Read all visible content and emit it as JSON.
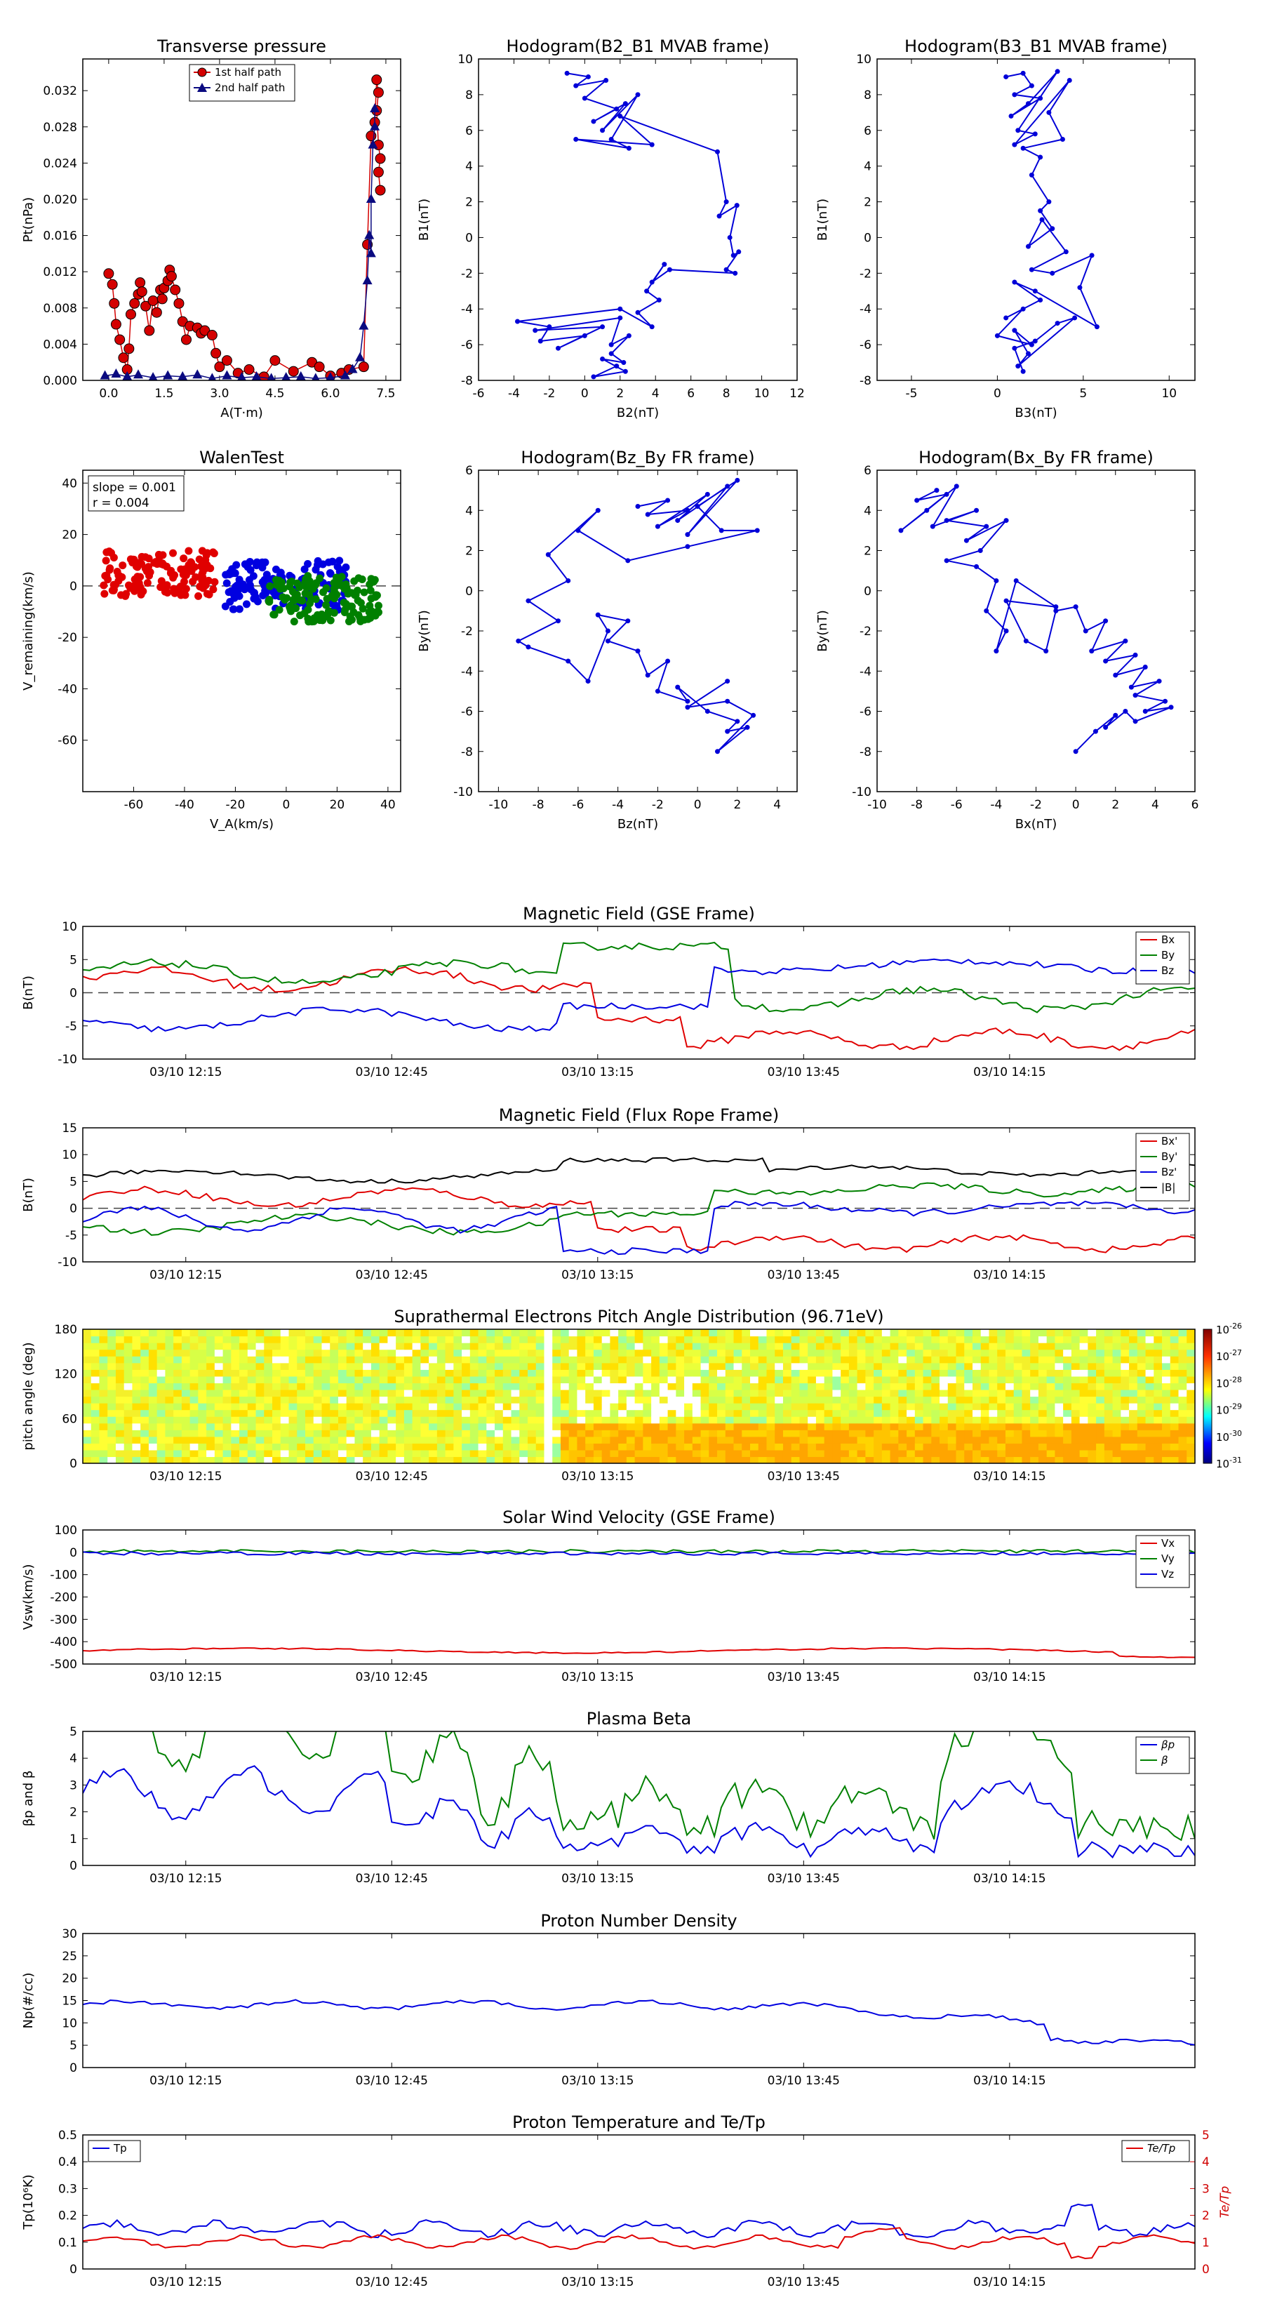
{
  "chart_data": [
    {
      "id": "tp",
      "type": "scatter",
      "title": "Transverse pressure",
      "xlabel": "A(T·m)",
      "ylabel": "Pt(nPa)",
      "xlim": [
        -0.7,
        7.9
      ],
      "ylim": [
        0,
        0.0355
      ],
      "xticks": [
        0.0,
        1.5,
        3.0,
        4.5,
        6.0,
        7.5
      ],
      "xtick_labels": [
        "0.0",
        "1.5",
        "3.0",
        "4.5",
        "6.0",
        "7.5"
      ],
      "yticks": [
        0.0,
        0.004,
        0.008,
        0.012,
        0.016,
        0.02,
        0.024,
        0.028,
        0.032
      ],
      "ytick_labels": [
        "0.000",
        "0.004",
        "0.008",
        "0.012",
        "0.016",
        "0.020",
        "0.024",
        "0.028",
        "0.032"
      ],
      "legend_position": "top-center",
      "series": [
        {
          "name": "1st half path",
          "color": "#d40000",
          "marker": "circle",
          "x": [
            0.0,
            0.1,
            0.15,
            0.2,
            0.3,
            0.4,
            0.5,
            0.55,
            0.6,
            0.7,
            0.8,
            0.85,
            0.9,
            1.0,
            1.1,
            1.2,
            1.3,
            1.4,
            1.45,
            1.5,
            1.6,
            1.65,
            1.7,
            1.8,
            1.9,
            2.0,
            2.1,
            2.2,
            2.4,
            2.5,
            2.6,
            2.8,
            2.9,
            3.0,
            3.2,
            3.5,
            3.8,
            4.2,
            4.5,
            5.0,
            5.5,
            5.7,
            6.0,
            6.3,
            6.5,
            6.9,
            7.0,
            7.1,
            7.2,
            7.25,
            7.3,
            7.25,
            7.3,
            7.35,
            7.3,
            7.35
          ],
          "y": [
            0.0118,
            0.0106,
            0.0085,
            0.0062,
            0.0045,
            0.0025,
            0.0012,
            0.0035,
            0.0073,
            0.0085,
            0.0095,
            0.0108,
            0.0098,
            0.0082,
            0.0055,
            0.0088,
            0.0075,
            0.01,
            0.009,
            0.0102,
            0.011,
            0.0122,
            0.0115,
            0.01,
            0.0085,
            0.0065,
            0.0045,
            0.006,
            0.0058,
            0.0052,
            0.0055,
            0.005,
            0.003,
            0.0015,
            0.0022,
            0.0008,
            0.0012,
            0.0004,
            0.0022,
            0.001,
            0.002,
            0.0015,
            0.0005,
            0.0008,
            0.0012,
            0.0015,
            0.015,
            0.027,
            0.0285,
            0.0332,
            0.0318,
            0.0298,
            0.026,
            0.0245,
            0.023,
            0.021
          ]
        },
        {
          "name": "2nd half path",
          "color": "#0a0a80",
          "marker": "triangle",
          "x": [
            -0.1,
            0.2,
            0.5,
            0.8,
            1.2,
            1.6,
            2.0,
            2.4,
            2.8,
            3.2,
            3.6,
            4.0,
            4.4,
            4.8,
            5.2,
            5.6,
            6.0,
            6.4,
            6.6,
            6.8,
            6.9,
            7.0,
            7.05,
            7.1,
            7.1,
            7.15,
            7.2,
            7.2
          ],
          "y": [
            0.0005,
            0.0007,
            0.0004,
            0.0006,
            0.0003,
            0.0005,
            0.0004,
            0.0006,
            0.0002,
            0.0005,
            0.0003,
            0.0004,
            0.0002,
            0.0003,
            0.0004,
            0.0002,
            0.0003,
            0.0005,
            0.0012,
            0.0025,
            0.006,
            0.011,
            0.016,
            0.014,
            0.02,
            0.026,
            0.028,
            0.03
          ]
        }
      ]
    },
    {
      "id": "h1",
      "type": "line",
      "title": "Hodogram(B2_B1 MVAB frame)",
      "xlabel": "B2(nT)",
      "ylabel": "B1(nT)",
      "xlim": [
        -6,
        12
      ],
      "ylim": [
        -8,
        10
      ],
      "xticks": [
        -6,
        -4,
        -2,
        0,
        2,
        4,
        6,
        8,
        10,
        12
      ],
      "yticks": [
        -8,
        -6,
        -4,
        -2,
        0,
        2,
        4,
        6,
        8,
        10
      ],
      "series": [
        {
          "color": "#0000d8",
          "x": [
            -1.0,
            0.2,
            -0.5,
            1.2,
            0.0,
            1.8,
            0.5,
            2.3,
            1.0,
            3.0,
            1.5,
            2.5,
            -0.5,
            3.8,
            2.0,
            7.5,
            8.0,
            7.6,
            8.6,
            8.2,
            8.4,
            8.7,
            8.0,
            8.5,
            4.8,
            3.8,
            4.5,
            3.5,
            4.2,
            3.0,
            3.8,
            2.0,
            -3.8,
            -2.0,
            -2.5,
            0.0,
            -1.5,
            1.0,
            -2.8,
            2.0,
            1.5,
            2.5,
            1.5,
            2.2,
            1.0,
            2.3,
            0.5,
            1.8
          ],
          "y": [
            9.2,
            9.0,
            8.5,
            8.8,
            7.8,
            7.2,
            6.5,
            7.5,
            6.0,
            8.0,
            5.5,
            5.0,
            5.5,
            5.2,
            6.8,
            4.8,
            2.0,
            1.2,
            1.8,
            0.0,
            -1.0,
            -0.8,
            -1.8,
            -2.0,
            -1.8,
            -2.5,
            -1.5,
            -3.0,
            -3.5,
            -4.2,
            -5.0,
            -4.0,
            -4.7,
            -5.0,
            -5.8,
            -5.5,
            -6.2,
            -5.0,
            -5.2,
            -4.5,
            -6.0,
            -5.5,
            -6.5,
            -7.0,
            -6.8,
            -7.5,
            -7.8,
            -7.2
          ]
        }
      ]
    },
    {
      "id": "h2",
      "type": "line",
      "title": "Hodogram(B3_B1 MVAB frame)",
      "xlabel": "B3(nT)",
      "ylabel": "B1(nT)",
      "xlim": [
        -7,
        11.5
      ],
      "ylim": [
        -8,
        10
      ],
      "xticks": [
        -5,
        0,
        5,
        10
      ],
      "yticks": [
        -8,
        -6,
        -4,
        -2,
        0,
        2,
        4,
        6,
        8,
        10
      ],
      "series": [
        {
          "color": "#0000d8",
          "x": [
            0.5,
            1.5,
            2.0,
            1.0,
            2.5,
            0.8,
            1.8,
            3.5,
            1.2,
            2.2,
            1.0,
            4.2,
            3.0,
            3.8,
            1.5,
            2.5,
            2.0,
            3.0,
            2.5,
            3.2,
            1.8,
            2.6,
            4.0,
            2.0,
            3.2,
            5.5,
            4.8,
            5.8,
            2.2,
            1.0,
            2.5,
            0.5,
            1.5,
            0.0,
            2.0,
            1.0,
            1.8,
            1.2,
            4.5,
            3.5,
            2.2,
            1.0,
            1.5
          ],
          "y": [
            9.0,
            9.2,
            8.5,
            8.0,
            7.8,
            6.8,
            7.5,
            9.3,
            6.0,
            5.8,
            5.2,
            8.8,
            7.0,
            5.5,
            5.0,
            4.5,
            3.5,
            2.0,
            1.5,
            0.5,
            -0.5,
            1.0,
            -0.8,
            -1.8,
            -2.0,
            -1.0,
            -2.8,
            -5.0,
            -3.0,
            -2.5,
            -3.5,
            -4.5,
            -4.0,
            -5.5,
            -6.0,
            -5.2,
            -6.5,
            -7.2,
            -4.5,
            -4.8,
            -5.8,
            -6.2,
            -7.5
          ]
        }
      ]
    },
    {
      "id": "walen",
      "type": "scatter",
      "title": "WalenTest",
      "xlabel": "V_A(km/s)",
      "ylabel": "V_remaining(km/s)",
      "xlim": [
        -80,
        45
      ],
      "ylim": [
        -80,
        45
      ],
      "xticks": [
        -60,
        -40,
        -20,
        0,
        20,
        40
      ],
      "yticks": [
        -60,
        -40,
        -20,
        0,
        20,
        40
      ],
      "annotations": [
        "slope = 0.001",
        "r = 0.004"
      ],
      "zero_line": true
    },
    {
      "id": "h3",
      "type": "line",
      "title": "Hodogram(Bz_By FR frame)",
      "xlabel": "Bz(nT)",
      "ylabel": "By(nT)",
      "xlim": [
        -11,
        5
      ],
      "ylim": [
        -10,
        6
      ],
      "xticks": [
        -10,
        -8,
        -6,
        -4,
        -2,
        0,
        2,
        4
      ],
      "yticks": [
        -10,
        -8,
        -6,
        -4,
        -2,
        0,
        2,
        4,
        6
      ],
      "series": [
        {
          "color": "#0000d8",
          "x": [
            -3.0,
            -1.5,
            -2.5,
            -0.5,
            -2.0,
            0.5,
            -1.0,
            1.5,
            -0.5,
            2.0,
            0.0,
            1.2,
            3.0,
            -0.5,
            -3.5,
            -6.0,
            -5.0,
            -7.5,
            -6.5,
            -8.5,
            -7.0,
            -9.0,
            -8.5,
            -6.5,
            -5.5,
            -4.5,
            -5.0,
            -3.5,
            -4.5,
            -3.0,
            -2.5,
            -1.5,
            -2.0,
            -0.5,
            -1.0,
            0.5,
            2.0,
            1.5,
            2.5,
            1.0,
            2.8,
            1.5,
            -0.5,
            1.5
          ],
          "y": [
            4.2,
            4.5,
            3.8,
            4.0,
            3.2,
            4.8,
            3.5,
            5.2,
            2.8,
            5.5,
            4.2,
            3.0,
            3.0,
            2.2,
            1.5,
            3.0,
            4.0,
            1.8,
            0.5,
            -0.5,
            -1.5,
            -2.5,
            -2.8,
            -3.5,
            -4.5,
            -2.0,
            -1.2,
            -1.5,
            -2.5,
            -3.0,
            -4.2,
            -3.5,
            -5.0,
            -5.5,
            -4.8,
            -6.0,
            -6.5,
            -7.0,
            -6.8,
            -8.0,
            -6.2,
            -5.5,
            -5.8,
            -4.5
          ]
        }
      ]
    },
    {
      "id": "h4",
      "type": "line",
      "title": "Hodogram(Bx_By FR frame)",
      "xlabel": "Bx(nT)",
      "ylabel": "By(nT)",
      "xlim": [
        -10,
        6
      ],
      "ylim": [
        -10,
        6
      ],
      "xticks": [
        -10,
        -8,
        -6,
        -4,
        -2,
        0,
        2,
        4,
        6
      ],
      "yticks": [
        -10,
        -8,
        -6,
        -4,
        -2,
        0,
        2,
        4,
        6
      ],
      "series": [
        {
          "color": "#0000d8",
          "x": [
            -7.0,
            -8.0,
            -6.5,
            -8.8,
            -7.5,
            -6.0,
            -7.2,
            -5.0,
            -6.5,
            -4.5,
            -5.5,
            -3.5,
            -4.8,
            -6.5,
            -5.0,
            -4.0,
            -4.5,
            -3.5,
            -4.0,
            -3.0,
            -1.0,
            -3.5,
            -2.5,
            -1.5,
            -1.0,
            0.0,
            0.5,
            1.5,
            0.8,
            2.5,
            1.5,
            3.0,
            2.0,
            3.5,
            2.8,
            4.2,
            3.0,
            4.5,
            3.5,
            4.8,
            3.0,
            2.5,
            1.5,
            2.0,
            1.0,
            0.0
          ],
          "y": [
            5.0,
            4.5,
            4.8,
            3.0,
            4.0,
            5.2,
            3.2,
            4.0,
            3.5,
            3.2,
            2.5,
            3.5,
            2.0,
            1.5,
            1.2,
            0.5,
            -1.0,
            -2.0,
            -3.0,
            0.5,
            -0.8,
            -0.5,
            -2.5,
            -3.0,
            -1.0,
            -0.8,
            -2.0,
            -1.5,
            -3.0,
            -2.5,
            -3.5,
            -3.2,
            -4.2,
            -3.8,
            -4.8,
            -4.5,
            -5.2,
            -5.5,
            -6.0,
            -5.8,
            -6.5,
            -6.0,
            -6.8,
            -6.2,
            -7.0,
            -8.0
          ]
        }
      ]
    },
    {
      "id": "mag_gse",
      "type": "line",
      "title": "Magnetic Field (GSE Frame)",
      "ylabel": "B(nT)",
      "xlim": [
        0,
        162
      ],
      "ylim": [
        -10,
        10
      ],
      "yticks": [
        -10,
        -5,
        0,
        5,
        10
      ],
      "xticks": [
        15,
        45,
        75,
        105,
        135
      ],
      "xtick_labels": [
        "03/10 12:15",
        "03/10 12:45",
        "03/10 13:15",
        "03/10 13:45",
        "03/10 14:15"
      ],
      "zero_line": true,
      "legend_position": "top-right",
      "series": [
        {
          "name": "Bx",
          "color": "#e00000"
        },
        {
          "name": "By",
          "color": "#008000"
        },
        {
          "name": "Bz",
          "color": "#0000e0"
        }
      ]
    },
    {
      "id": "mag_fr",
      "type": "line",
      "title": "Magnetic Field (Flux Rope Frame)",
      "ylabel": "B(nT)",
      "xlim": [
        0,
        162
      ],
      "ylim": [
        -10,
        15
      ],
      "yticks": [
        -10,
        -5,
        0,
        5,
        10,
        15
      ],
      "xticks": [
        15,
        45,
        75,
        105,
        135
      ],
      "xtick_labels": [
        "03/10 12:15",
        "03/10 12:45",
        "03/10 13:15",
        "03/10 13:45",
        "03/10 14:15"
      ],
      "zero_line": true,
      "legend_position": "top-right",
      "series": [
        {
          "name": "Bx'",
          "color": "#e00000"
        },
        {
          "name": "By'",
          "color": "#008000"
        },
        {
          "name": "Bz'",
          "color": "#0000e0"
        },
        {
          "name": "|B|",
          "color": "#000000"
        }
      ]
    },
    {
      "id": "pad",
      "type": "heatmap",
      "title": "Suprathermal Electrons Pitch Angle Distribution (96.71eV)",
      "ylabel": "pitch angle (deg)",
      "xlim": [
        0,
        162
      ],
      "ylim": [
        0,
        180
      ],
      "yticks": [
        0,
        60,
        120,
        180
      ],
      "xticks": [
        15,
        45,
        75,
        105,
        135
      ],
      "xtick_labels": [
        "03/10 12:15",
        "03/10 12:45",
        "03/10 13:15",
        "03/10 13:45",
        "03/10 14:15"
      ],
      "colorbar_ticks": [
        {
          "base": "10",
          "exp": "-26"
        },
        {
          "base": "10",
          "exp": "-27"
        },
        {
          "base": "10",
          "exp": "-28"
        },
        {
          "base": "10",
          "exp": "-29"
        },
        {
          "base": "10",
          "exp": "-30"
        },
        {
          "base": "10",
          "exp": "-31"
        }
      ]
    },
    {
      "id": "vsw",
      "type": "line",
      "title": "Solar Wind Velocity (GSE Frame)",
      "ylabel": "Vsw(km/s)",
      "xlim": [
        0,
        162
      ],
      "ylim": [
        -500,
        100
      ],
      "yticks": [
        -500,
        -400,
        -300,
        -200,
        -100,
        0,
        100
      ],
      "xticks": [
        15,
        45,
        75,
        105,
        135
      ],
      "xtick_labels": [
        "03/10 12:15",
        "03/10 12:45",
        "03/10 13:15",
        "03/10 13:45",
        "03/10 14:15"
      ],
      "legend_position": "top-right",
      "series": [
        {
          "name": "Vx",
          "color": "#e00000"
        },
        {
          "name": "Vy",
          "color": "#008000"
        },
        {
          "name": "Vz",
          "color": "#0000e0"
        }
      ]
    },
    {
      "id": "beta",
      "type": "line",
      "title": "Plasma Beta",
      "ylabel": "βp and β",
      "xlim": [
        0,
        162
      ],
      "ylim": [
        0,
        5
      ],
      "yticks": [
        0,
        1,
        2,
        3,
        4,
        5
      ],
      "xticks": [
        15,
        45,
        75,
        105,
        135
      ],
      "xtick_labels": [
        "03/10 12:15",
        "03/10 12:45",
        "03/10 13:15",
        "03/10 13:45",
        "03/10 14:15"
      ],
      "legend_position": "top-right",
      "series": [
        {
          "name": "βp",
          "color": "#0000e0"
        },
        {
          "name": "β",
          "color": "#008000"
        }
      ]
    },
    {
      "id": "np",
      "type": "line",
      "title": "Proton Number Density",
      "ylabel": "Np(#/cc)",
      "xlim": [
        0,
        162
      ],
      "ylim": [
        0,
        30
      ],
      "yticks": [
        0,
        5,
        10,
        15,
        20,
        25,
        30
      ],
      "xticks": [
        15,
        45,
        75,
        105,
        135
      ],
      "xtick_labels": [
        "03/10 12:15",
        "03/10 12:45",
        "03/10 13:15",
        "03/10 13:45",
        "03/10 14:15"
      ],
      "series": [
        {
          "color": "#0000e0"
        }
      ]
    },
    {
      "id": "temp",
      "type": "line",
      "title": "Proton Temperature and Te/Tp",
      "ylabel": "Tp(10⁶K)",
      "ylabel_right": "Te/Tp",
      "xlim": [
        0,
        162
      ],
      "ylim": [
        0,
        0.5
      ],
      "ylim_right": [
        0,
        5
      ],
      "yticks": [
        0.0,
        0.1,
        0.2,
        0.3,
        0.4,
        0.5
      ],
      "yticks_right": [
        0,
        1,
        2,
        3,
        4,
        5
      ],
      "xticks": [
        15,
        45,
        75,
        105,
        135
      ],
      "xtick_labels": [
        "03/10 12:15",
        "03/10 12:45",
        "03/10 13:15",
        "03/10 13:45",
        "03/10 14:15"
      ],
      "series": [
        {
          "name": "Tp",
          "color": "#0000e0",
          "legend_position": "top-left"
        },
        {
          "name": "Te/Tp",
          "color": "#e00000",
          "legend_position": "top-right"
        }
      ]
    }
  ]
}
